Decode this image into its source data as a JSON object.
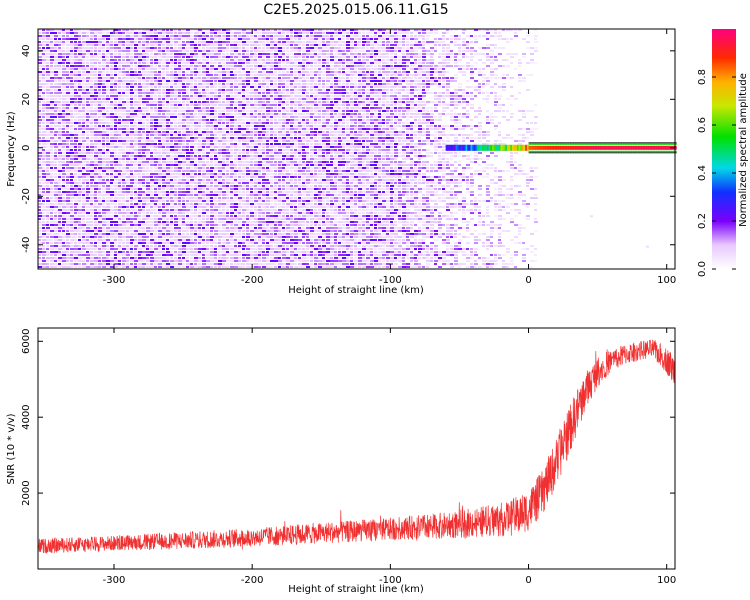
{
  "title": "C2E5.2025.015.06.11.G15",
  "chart_data": [
    {
      "type": "heatmap",
      "xlabel": "Height of straight line (km)",
      "ylabel": "Frequency (Hz)",
      "xlim": [
        -355,
        106
      ],
      "ylim": [
        -50,
        49
      ],
      "xticks": [
        -300,
        -200,
        -100,
        0,
        100
      ],
      "yticks": [
        -40,
        -20,
        0,
        20,
        40
      ],
      "colorbar": {
        "label": "Normalized spectral amplitude",
        "range": [
          0,
          1
        ],
        "ticks": [
          "0.0",
          "0.2",
          "0.4",
          "0.6",
          "0.8"
        ]
      },
      "description_points": [
        {
          "x": -60,
          "y": 0,
          "value": 0.25
        },
        {
          "x": -30,
          "y": 0,
          "value": 0.5
        },
        {
          "x": -10,
          "y": 0,
          "value": 0.65
        },
        {
          "x": 0,
          "y": 0,
          "value": 0.85
        },
        {
          "x": 50,
          "y": 0,
          "value": 0.95
        },
        {
          "x": 106,
          "y": 0,
          "value": 0.95
        }
      ],
      "noise_fade_start_x": -100,
      "noise_end_x": 5
    },
    {
      "type": "line",
      "xlabel": "Height of straight line (km)",
      "ylabel": "SNR (10 * v/v)",
      "xlim": [
        -355,
        106
      ],
      "ylim": [
        0,
        6350
      ],
      "xticks": [
        -300,
        -200,
        -100,
        0,
        100
      ],
      "yticks": [
        2000,
        4000,
        6000
      ],
      "series": [
        {
          "color": "#f03030",
          "x": [
            -355,
            -300,
            -250,
            -200,
            -150,
            -100,
            -60,
            -40,
            -20,
            -10,
            0,
            10,
            20,
            30,
            40,
            50,
            60,
            70,
            80,
            90,
            100,
            106
          ],
          "y": [
            600,
            680,
            750,
            830,
            950,
            1050,
            1150,
            1220,
            1300,
            1380,
            1550,
            2000,
            2800,
            3700,
            4600,
            5200,
            5500,
            5650,
            5750,
            5800,
            5500,
            5200
          ],
          "noise_amplitude": [
            200,
            200,
            230,
            250,
            280,
            300,
            350,
            400,
            450,
            500,
            550,
            600,
            650,
            650,
            550,
            400,
            300,
            280,
            250,
            260,
            350,
            450
          ]
        }
      ]
    }
  ]
}
